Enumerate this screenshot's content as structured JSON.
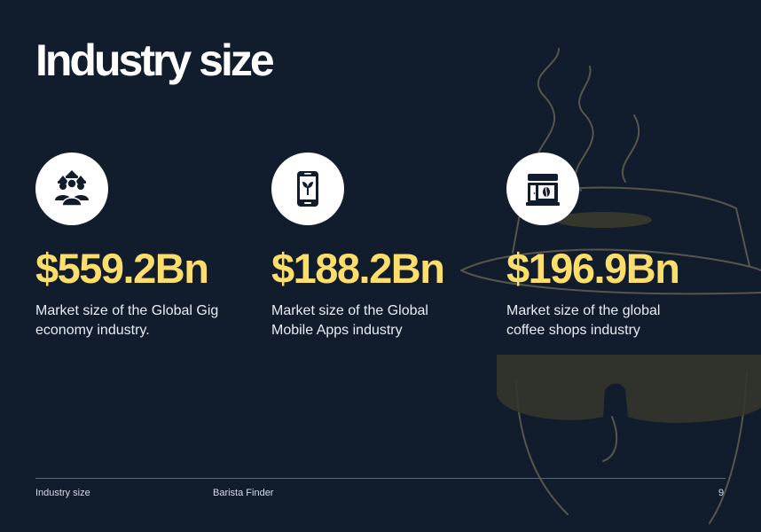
{
  "slide": {
    "title": "Industry size",
    "accent_color": "#fdde6b",
    "background_color": "#111c2d"
  },
  "stats": [
    {
      "icon": "workers-group-icon",
      "value": "$559.2Bn",
      "desc_line1": "Market size of the Global Gig",
      "desc_line2": "economy industry."
    },
    {
      "icon": "mobile-app-icon",
      "value": "$188.2Bn",
      "desc_line1": "Market size of the Global",
      "desc_line2": "Mobile Apps industry"
    },
    {
      "icon": "coffee-shop-icon",
      "value": "$196.9Bn",
      "desc_line1": "Market size of the global",
      "desc_line2": "coffee shops industry"
    }
  ],
  "footer": {
    "section": "Industry size",
    "project": "Barista Finder",
    "page_number": "9"
  }
}
